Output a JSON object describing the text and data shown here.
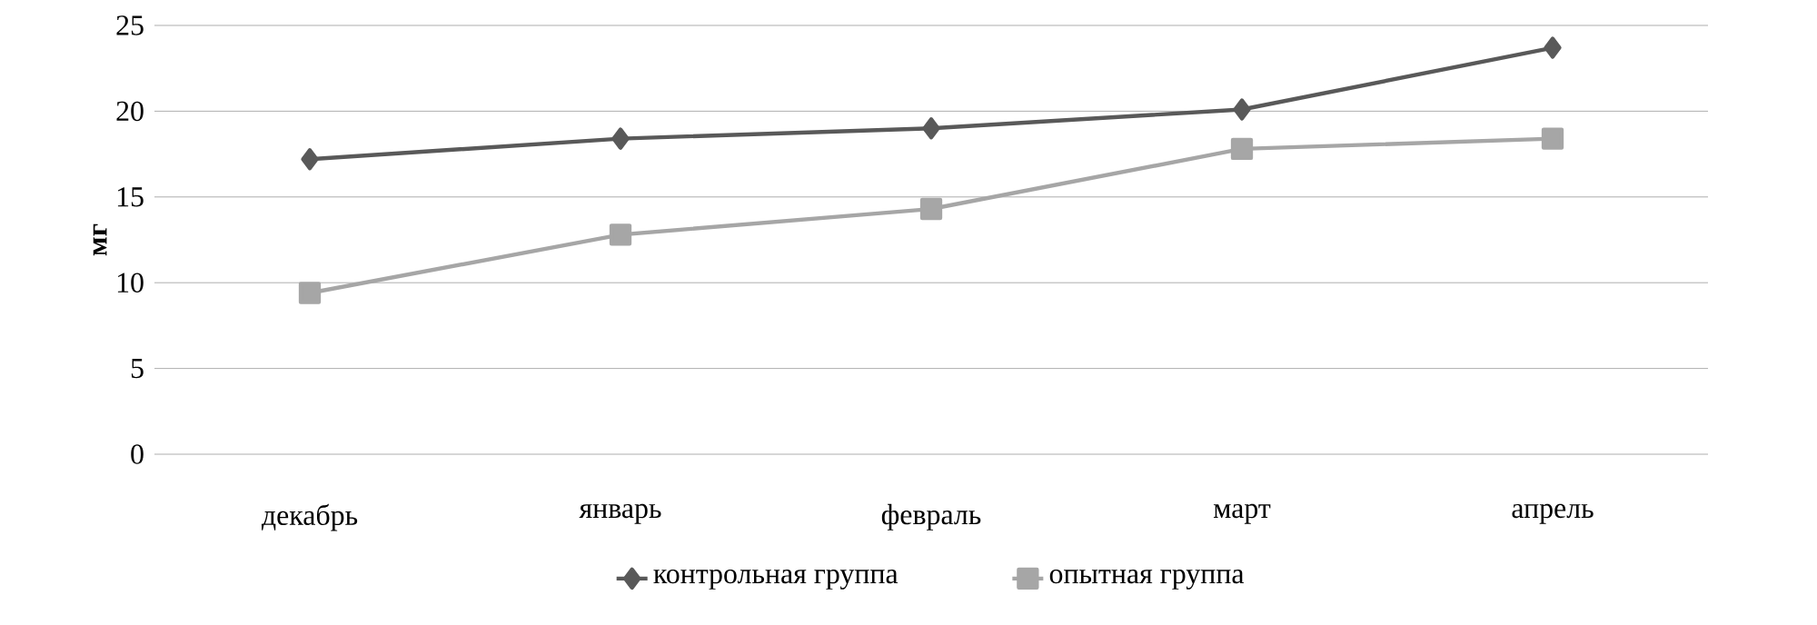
{
  "chart_data": {
    "type": "line",
    "ylabel": "мг",
    "categories": [
      "декабрь",
      "январь",
      "февраль",
      "март",
      "апрель"
    ],
    "series": [
      {
        "name": "контрольная группа",
        "color": "#595959",
        "marker": "diamond",
        "values": [
          17.2,
          18.4,
          19.0,
          20.1,
          23.7
        ]
      },
      {
        "name": "опытная группа",
        "color": "#a6a6a6",
        "marker": "square",
        "values": [
          9.4,
          12.8,
          14.3,
          17.8,
          18.4
        ]
      }
    ],
    "ylim": [
      0,
      25
    ],
    "yticks": [
      0,
      5,
      10,
      15,
      20,
      25
    ],
    "grid": "y",
    "legend": "bottom",
    "line_style": "solid"
  }
}
